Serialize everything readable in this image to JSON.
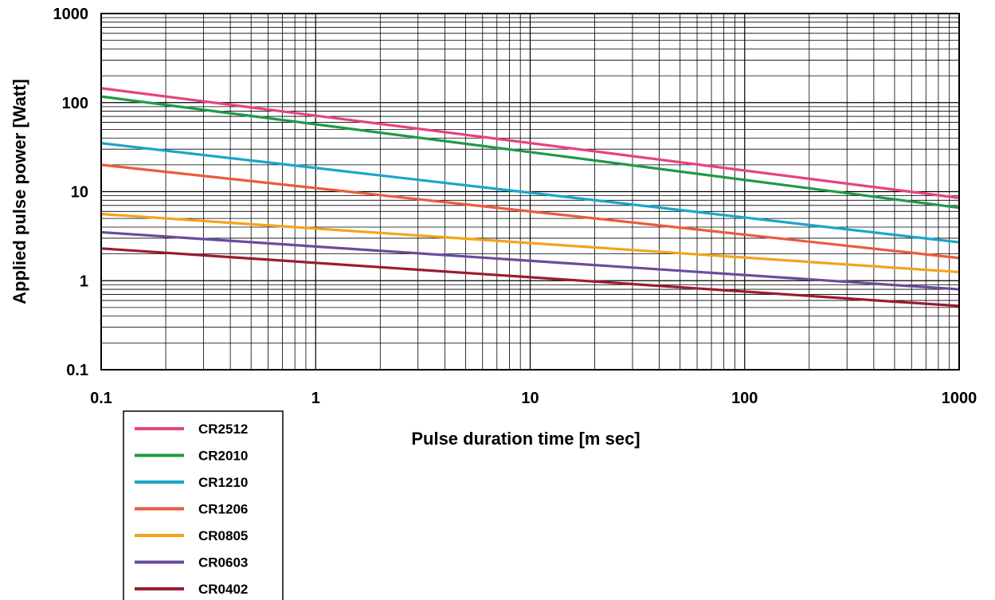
{
  "chart_data": {
    "type": "line",
    "xlabel": "Pulse duration time [m sec]",
    "ylabel": "Applied pulse power [Watt]",
    "xscale": "log",
    "yscale": "log",
    "xlim": [
      0.1,
      1000
    ],
    "ylim": [
      0.1,
      1000
    ],
    "xticks": [
      "0.1",
      "1",
      "10",
      "100",
      "1000"
    ],
    "yticks": [
      "0.1",
      "1",
      "10",
      "100",
      "1000"
    ],
    "grid": true,
    "legend_position": "bottom-left below plot",
    "series": [
      {
        "name": "CR2512",
        "color": "#e8437a",
        "x": [
          0.1,
          1000
        ],
        "y": [
          145,
          8.5
        ]
      },
      {
        "name": "CR2010",
        "color": "#1f9a45",
        "x": [
          0.1,
          1000
        ],
        "y": [
          117,
          6.6
        ]
      },
      {
        "name": "CR1210",
        "color": "#1aa6c8",
        "x": [
          0.1,
          1000
        ],
        "y": [
          35,
          2.7
        ]
      },
      {
        "name": "CR1206",
        "color": "#ec5a3e",
        "x": [
          0.1,
          1000
        ],
        "y": [
          20,
          1.8
        ]
      },
      {
        "name": "CR0805",
        "color": "#f5a21b",
        "x": [
          0.1,
          1000
        ],
        "y": [
          5.6,
          1.25
        ]
      },
      {
        "name": "CR0603",
        "color": "#6a4c9c",
        "x": [
          0.1,
          1000
        ],
        "y": [
          3.5,
          0.8
        ]
      },
      {
        "name": "CR0402",
        "color": "#9b1b30",
        "x": [
          0.1,
          1000
        ],
        "y": [
          2.3,
          0.52
        ]
      }
    ]
  }
}
